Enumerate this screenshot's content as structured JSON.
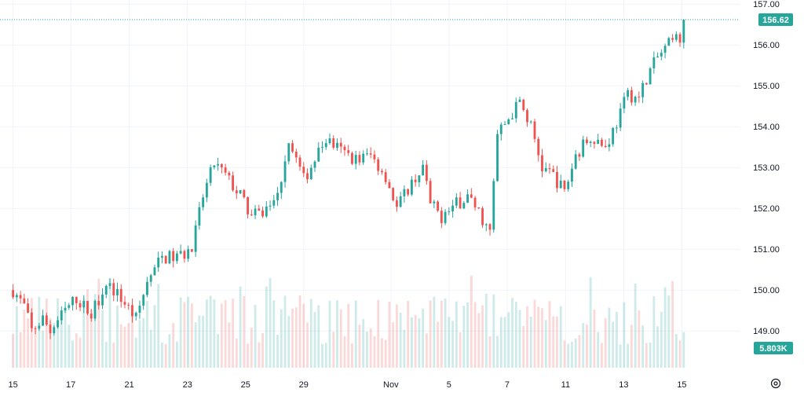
{
  "chart_data": {
    "type": "candlestick",
    "y_axis": {
      "ticks": [
        "157.00",
        "156.00",
        "155.00",
        "154.00",
        "153.00",
        "152.00",
        "151.00",
        "150.00",
        "149.00"
      ],
      "ylim": [
        148.1,
        157.1
      ]
    },
    "x_axis": {
      "ticks": [
        {
          "label": "15",
          "x": 0
        },
        {
          "label": "17",
          "x": 15.5
        },
        {
          "label": "21",
          "x": 31.2
        },
        {
          "label": "23",
          "x": 46.8
        },
        {
          "label": "25",
          "x": 62.4
        },
        {
          "label": "29",
          "x": 78.0
        },
        {
          "label": "Nov",
          "x": 101.4
        },
        {
          "label": "5",
          "x": 117.0
        },
        {
          "label": "7",
          "x": 132.6
        },
        {
          "label": "11",
          "x": 148.3
        },
        {
          "label": "13",
          "x": 163.9
        },
        {
          "label": "15",
          "x": 179.5
        }
      ],
      "xlim": [
        -3.5,
        195
      ]
    },
    "last_price": "156.62",
    "volume_label": "5.803K",
    "grid": true,
    "colors": {
      "up": "#26a69a",
      "down": "#ef5350",
      "badge_bg": "#26a69a",
      "volume_badge_bg": "#26a69a",
      "grid": "#f0f3fa",
      "text": "#131722"
    },
    "anchors": [
      [
        0,
        150.0
      ],
      [
        3,
        149.6
      ],
      [
        5,
        149.0
      ],
      [
        8,
        149.3
      ],
      [
        10,
        149.0
      ],
      [
        14,
        149.5
      ],
      [
        17,
        149.8
      ],
      [
        21,
        149.4
      ],
      [
        25,
        150.2
      ],
      [
        29,
        149.8
      ],
      [
        33,
        149.3
      ],
      [
        36,
        150.2
      ],
      [
        40,
        150.8
      ],
      [
        44,
        150.8
      ],
      [
        48,
        151.0
      ],
      [
        51,
        152.3
      ],
      [
        54,
        153.1
      ],
      [
        57,
        152.8
      ],
      [
        61,
        152.3
      ],
      [
        64,
        151.8
      ],
      [
        67,
        151.9
      ],
      [
        71,
        152.3
      ],
      [
        74,
        153.7
      ],
      [
        78,
        152.7
      ],
      [
        81,
        153.2
      ],
      [
        84,
        153.7
      ],
      [
        88,
        153.4
      ],
      [
        92,
        153.2
      ],
      [
        96,
        153.3
      ],
      [
        100,
        152.8
      ],
      [
        103,
        152.0
      ],
      [
        106,
        152.5
      ],
      [
        110,
        153.0
      ],
      [
        112,
        152.1
      ],
      [
        115,
        151.8
      ],
      [
        119,
        152.1
      ],
      [
        122,
        152.3
      ],
      [
        125,
        151.9
      ],
      [
        128,
        151.4
      ],
      [
        130,
        153.8
      ],
      [
        133,
        154.2
      ],
      [
        136,
        154.6
      ],
      [
        139,
        154.0
      ],
      [
        142,
        153.0
      ],
      [
        145,
        152.8
      ],
      [
        148,
        152.4
      ],
      [
        151,
        153.3
      ],
      [
        155,
        153.8
      ],
      [
        159,
        153.5
      ],
      [
        162,
        154.1
      ],
      [
        165,
        154.8
      ],
      [
        168,
        154.7
      ],
      [
        170,
        155.2
      ],
      [
        173,
        155.7
      ],
      [
        176,
        156.0
      ],
      [
        179,
        156.2
      ],
      [
        180,
        156.62
      ]
    ]
  }
}
